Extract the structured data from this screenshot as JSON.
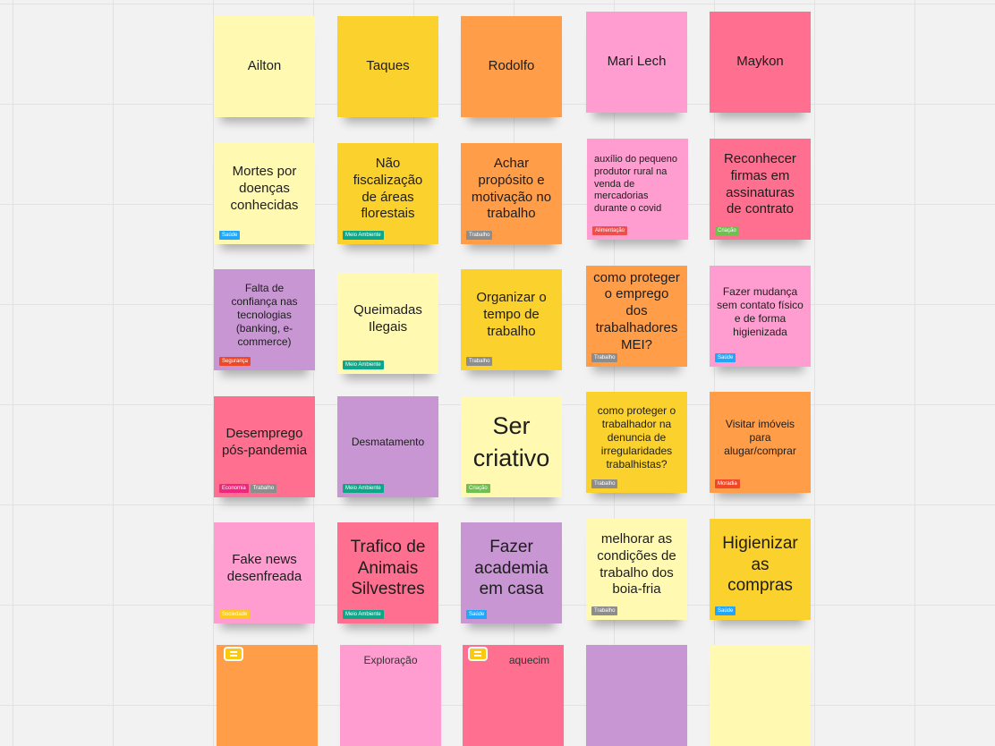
{
  "colors": {
    "yellow_light": "#fff9b1",
    "yellow": "#fbd12e",
    "orange": "#ff9d48",
    "pink_light": "#ff9dd0",
    "pink_red": "#ff6f8f",
    "purple": "#c996d4",
    "tag_saude": "#1ea7fd",
    "tag_meio_ambiente": "#0ca789",
    "tag_trabalho": "#8d8d8d",
    "tag_alimentacao": "#ee4e4e",
    "tag_criacao": "#6ec14d",
    "tag_seguranca": "#f24726",
    "tag_economia": "#f0267e",
    "tag_moradia": "#f24726",
    "tag_sociedade": "#fbc91f"
  },
  "notes": {
    "ailton": {
      "text": "Ailton"
    },
    "taques": {
      "text": "Taques"
    },
    "rodolfo": {
      "text": "Rodolfo"
    },
    "mari_lech": {
      "text": "Mari Lech"
    },
    "maykon": {
      "text": "Maykon"
    },
    "mortes": {
      "text": "Mortes por doenças conhecidas",
      "tag": "Saúde"
    },
    "fiscalizacao": {
      "text": "Não fiscalização de áreas florestais",
      "tag": "Meio Ambiente"
    },
    "proposito": {
      "text": "Achar propósito e motivação no trabalho",
      "tag": "Trabalho"
    },
    "auxilio": {
      "text": "auxílio do pequeno produtor rural na venda de mercadorias durante o covid",
      "tag": "Alimentação"
    },
    "firmas": {
      "text": "Reconhecer firmas em assinaturas de contrato",
      "tag": "Criação"
    },
    "confianca": {
      "text": "Falta de confiança nas tecnologias (banking, e-commerce)",
      "tag": "Segurança"
    },
    "queimadas": {
      "text": "Queimadas Ilegais",
      "tag": "Meio Ambiente"
    },
    "organizar": {
      "text": "Organizar o tempo de trabalho",
      "tag": "Trabalho"
    },
    "mei": {
      "text": "como proteger o emprego dos trabalhadores MEI?",
      "tag": "Trabalho"
    },
    "mudanca": {
      "text": "Fazer mudança sem contato físico e de forma higienizada",
      "tag": "Saúde"
    },
    "desemprego": {
      "text": "Desemprego pós-pandemia",
      "tags": [
        "Economia",
        "Trabalho"
      ]
    },
    "desmatamento": {
      "text": "Desmatamento",
      "tag": "Meio Ambiente"
    },
    "criativo": {
      "text": "Ser criativo",
      "tag": "Criação"
    },
    "denuncia": {
      "text": "como proteger o trabalhador na denuncia de irregularidades trabalhistas?",
      "tag": "Trabalho"
    },
    "imoveis": {
      "text": "Visitar imóveis para alugar/comprar",
      "tag": "Moradia"
    },
    "fake_news": {
      "text": "Fake news desenfreada",
      "tag": "Sociedade"
    },
    "trafico": {
      "text": "Trafico de Animais Silvestres",
      "tag": "Meio Ambiente"
    },
    "academia": {
      "text": "Fazer academia em casa",
      "tag": "Saúde"
    },
    "boia_fria": {
      "text": "melhorar as condições de trabalho dos boia-fria",
      "tag": "Trabalho"
    },
    "higienizar": {
      "text": "Higienizar as compras",
      "tag": "Saúde"
    },
    "partial_2": {
      "text": "Exploração"
    },
    "partial_3": {
      "text": "aquecim"
    }
  }
}
